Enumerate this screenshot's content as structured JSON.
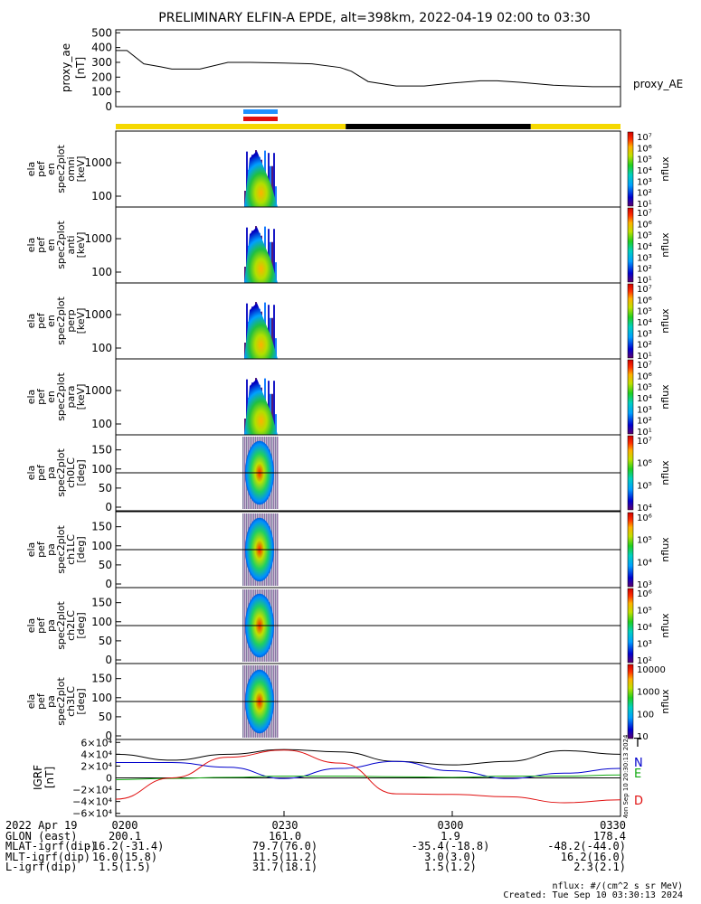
{
  "title": "PRELIMINARY ELFIN-A EPDE, alt=398km, 2022-04-19 02:00 to 03:30",
  "colors": {
    "yellow": "#f5d800",
    "black": "#000000",
    "blue": "#1e90ff",
    "red": "#e01010",
    "green": "#11aa11",
    "navy": "#0000cc"
  },
  "chart_data": [
    {
      "type": "line",
      "panel": "proxy_ae",
      "ylabel": [
        "proxy_ae",
        "[nT]"
      ],
      "series": [
        {
          "name": "proxy_AE",
          "x": [
            "02:00",
            "02:02",
            "02:05",
            "02:08",
            "02:10",
            "02:15",
            "02:20",
            "02:24",
            "02:30",
            "02:35",
            "02:40",
            "02:42",
            "02:45",
            "02:50",
            "02:55",
            "03:00",
            "03:05",
            "03:08",
            "03:12",
            "03:18",
            "03:25",
            "03:30"
          ],
          "values": [
            380,
            380,
            290,
            270,
            255,
            255,
            300,
            300,
            295,
            290,
            265,
            240,
            170,
            140,
            140,
            160,
            175,
            175,
            165,
            145,
            135,
            135
          ]
        }
      ],
      "yticks": [
        "0",
        "100",
        "200",
        "300",
        "400",
        "500"
      ],
      "ylim": [
        0,
        520
      ]
    },
    {
      "type": "heatmap",
      "panel": "en_spec_omni",
      "ylabel": [
        "ela",
        "pef",
        "en",
        "spec2plot",
        "omni",
        "[keV]"
      ],
      "yticks": [
        "100",
        "1000"
      ],
      "colorbar": {
        "label": "nflux",
        "ticks": [
          "10¹",
          "10²",
          "10³",
          "10⁴",
          "10⁵",
          "10⁶",
          "10⁷"
        ]
      }
    },
    {
      "type": "heatmap",
      "panel": "en_spec_anti",
      "ylabel": [
        "ela",
        "pef",
        "en",
        "spec2plot",
        "anti",
        "[keV]"
      ],
      "yticks": [
        "100",
        "1000"
      ],
      "colorbar": {
        "label": "nflux",
        "ticks": [
          "10¹",
          "10²",
          "10³",
          "10⁴",
          "10⁵",
          "10⁶",
          "10⁷"
        ]
      }
    },
    {
      "type": "heatmap",
      "panel": "en_spec_perp",
      "ylabel": [
        "ela",
        "pef",
        "en",
        "spec2plot",
        "perp",
        "[keV]"
      ],
      "yticks": [
        "100",
        "1000"
      ],
      "colorbar": {
        "label": "nflux",
        "ticks": [
          "10¹",
          "10²",
          "10³",
          "10⁴",
          "10⁵",
          "10⁶",
          "10⁷"
        ]
      }
    },
    {
      "type": "heatmap",
      "panel": "en_spec_para",
      "ylabel": [
        "ela",
        "pef",
        "en",
        "spec2plot",
        "para",
        "[keV]"
      ],
      "yticks": [
        "100",
        "1000"
      ],
      "colorbar": {
        "label": "nflux",
        "ticks": [
          "10¹",
          "10²",
          "10³",
          "10⁴",
          "10⁵",
          "10⁶",
          "10⁷"
        ]
      }
    },
    {
      "type": "heatmap",
      "panel": "pa_ch0LC",
      "ylabel": [
        "ela",
        "pef",
        "pa",
        "spec2plot",
        "ch0LC",
        "[deg]"
      ],
      "yticks": [
        "0",
        "50",
        "100",
        "150"
      ],
      "colorbar": {
        "label": "nflux",
        "ticks": [
          "10⁴",
          "10⁵",
          "10⁶",
          "10⁷"
        ]
      }
    },
    {
      "type": "heatmap",
      "panel": "pa_ch1LC",
      "ylabel": [
        "ela",
        "pef",
        "pa",
        "spec2plot",
        "ch1LC",
        "[deg]"
      ],
      "yticks": [
        "0",
        "50",
        "100",
        "150"
      ],
      "colorbar": {
        "label": "nflux",
        "ticks": [
          "10³",
          "10⁴",
          "10⁵",
          "10⁶"
        ]
      }
    },
    {
      "type": "heatmap",
      "panel": "pa_ch2LC",
      "ylabel": [
        "ela",
        "pef",
        "pa",
        "spec2plot",
        "ch2LC",
        "[deg]"
      ],
      "yticks": [
        "0",
        "50",
        "100",
        "150"
      ],
      "colorbar": {
        "label": "nflux",
        "ticks": [
          "10²",
          "10³",
          "10⁴",
          "10⁵",
          "10⁶"
        ]
      }
    },
    {
      "type": "heatmap",
      "panel": "pa_ch3LC",
      "ylabel": [
        "ela",
        "pef",
        "pa",
        "spec2plot",
        "ch3LC",
        "[deg]"
      ],
      "yticks": [
        "0",
        "50",
        "100",
        "150"
      ],
      "colorbar": {
        "label": "nflux",
        "ticks": [
          "10",
          "100",
          "1000",
          "10000"
        ]
      }
    },
    {
      "type": "line",
      "panel": "IGRF",
      "ylabel": [
        "IGRF",
        "[nT]"
      ],
      "yticks": [
        "−6×10⁴",
        "−4×10⁴",
        "−2×10⁴",
        "0",
        "2×10⁴",
        "4×10⁴",
        "6×10⁴"
      ],
      "ylim": [
        -65000,
        65000
      ],
      "series": [
        {
          "name": "T",
          "color": "#000000",
          "x": [
            0,
            10,
            20,
            30,
            40,
            50,
            60,
            70,
            80,
            90
          ],
          "values": [
            40000,
            30000,
            40000,
            48000,
            44000,
            28000,
            22000,
            28000,
            46000,
            40000
          ]
        },
        {
          "name": "N",
          "color": "#0000cc",
          "x": [
            0,
            10,
            20,
            30,
            40,
            50,
            60,
            70,
            80,
            90
          ],
          "values": [
            26000,
            26000,
            18000,
            -1000,
            16000,
            28000,
            12000,
            -1000,
            8000,
            16000
          ]
        },
        {
          "name": "E",
          "color": "#11aa11",
          "x": [
            0,
            10,
            20,
            30,
            40,
            50,
            60,
            70,
            80,
            90
          ],
          "values": [
            -3000,
            -1000,
            1000,
            3000,
            3000,
            2000,
            1000,
            3000,
            3000,
            5000
          ]
        },
        {
          "name": "D",
          "color": "#e01010",
          "x": [
            0,
            10,
            20,
            30,
            40,
            50,
            60,
            70,
            80,
            90
          ],
          "values": [
            -36000,
            0,
            35000,
            47000,
            25000,
            -27000,
            -28000,
            -32000,
            -42000,
            -37000
          ]
        }
      ],
      "side_label": "Mon Sep 10 20:30:13 2024"
    }
  ],
  "bars": {
    "science_zone": [
      {
        "from": "02:00",
        "to": "02:41",
        "color": "yellow"
      },
      {
        "from": "02:41",
        "to": "03:14",
        "color": "black"
      },
      {
        "from": "03:14",
        "to": "03:30",
        "color": "yellow"
      }
    ]
  },
  "footer": {
    "rows": [
      {
        "label": "2022 Apr 19",
        "cols": [
          "0200",
          "0230",
          "0300",
          "0330"
        ]
      },
      {
        "label": "GLON (east)",
        "cols": [
          "200.1",
          "161.0",
          "1.9",
          "178.4"
        ]
      },
      {
        "label": "MLAT-igrf(dip)",
        "cols": [
          "-16.2(-31.4)",
          "79.7(76.0)",
          "-35.4(-18.8)",
          "-48.2(-44.0)"
        ]
      },
      {
        "label": "MLT-igrf(dip)",
        "cols": [
          "16.0(15.8)",
          "11.5(11.2)",
          "3.0(3.0)",
          "16.2(16.0)"
        ]
      },
      {
        "label": "L-igrf(dip)",
        "cols": [
          "1.5(1.5)",
          "31.7(18.1)",
          "1.5(1.2)",
          "2.3(2.1)"
        ]
      }
    ],
    "notes": [
      "nflux: #/(cm^2 s sr MeV)",
      "Created: Tue Sep 10 03:30:13 2024"
    ]
  }
}
